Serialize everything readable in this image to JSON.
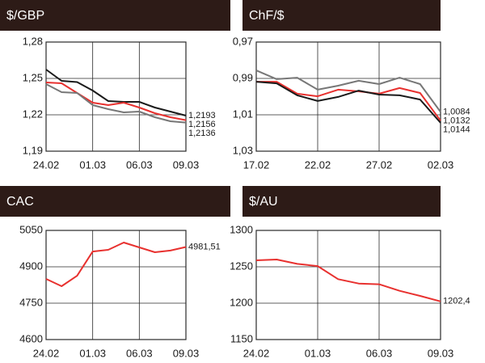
{
  "chart_data": [
    {
      "type": "line",
      "title": "$/GBP",
      "categories": [
        "24.02",
        null,
        null,
        "01.03",
        null,
        null,
        "06.03",
        null,
        null,
        "09.03"
      ],
      "series": [
        {
          "color": "#1a1a1a",
          "values": [
            1.2573,
            1.248,
            1.247,
            1.24,
            1.2313,
            1.2307,
            1.2307,
            1.226,
            1.2227,
            1.2193
          ],
          "value_labels": [
            null,
            null,
            null,
            null,
            null,
            null,
            null,
            null,
            null,
            "1,2193"
          ]
        },
        {
          "color": "#e8312f",
          "values": [
            1.2467,
            1.246,
            1.238,
            1.23,
            1.228,
            1.23,
            1.226,
            1.2213,
            1.218,
            1.2156
          ],
          "value_labels": [
            null,
            null,
            null,
            null,
            null,
            null,
            null,
            null,
            null,
            "1,2156"
          ]
        },
        {
          "color": "#777777",
          "values": [
            1.2453,
            1.2387,
            1.238,
            1.228,
            1.2247,
            1.222,
            1.2227,
            1.218,
            1.2147,
            1.2136
          ],
          "value_labels": [
            null,
            null,
            null,
            null,
            null,
            null,
            null,
            null,
            null,
            "1,2136"
          ]
        }
      ],
      "ylim": [
        1.19,
        1.28
      ],
      "yticks": [
        {
          "value": 1.19,
          "label": "1,19"
        },
        {
          "value": 1.22,
          "label": "1,22"
        },
        {
          "value": 1.25,
          "label": "1,25"
        },
        {
          "value": 1.28,
          "label": "1,28"
        }
      ],
      "grid": true
    },
    {
      "type": "line",
      "title": "ChF/$",
      "categories": [
        "17.02",
        null,
        null,
        "22.02",
        null,
        null,
        "27.02",
        null,
        null,
        "02.03"
      ],
      "series": [
        {
          "color": "#777777",
          "values": [
            0.9856,
            0.9904,
            0.9896,
            0.9962,
            0.994,
            0.9913,
            0.9931,
            0.9896,
            0.9931,
            1.0084
          ],
          "value_labels": [
            null,
            null,
            null,
            null,
            null,
            null,
            null,
            null,
            null,
            "1,0084"
          ]
        },
        {
          "color": "#e8312f",
          "values": [
            0.9918,
            0.9918,
            0.9984,
            0.9998,
            0.9962,
            0.9971,
            0.9984,
            0.9953,
            0.998,
            1.0132
          ],
          "value_labels": [
            null,
            null,
            null,
            null,
            null,
            null,
            null,
            null,
            null,
            "1,0132"
          ]
        },
        {
          "color": "#1a1a1a",
          "values": [
            0.9918,
            0.9927,
            0.9993,
            1.0024,
            1.0002,
            0.9967,
            0.9989,
            0.9993,
            1.0016,
            1.0144
          ],
          "value_labels": [
            null,
            null,
            null,
            null,
            null,
            null,
            null,
            null,
            null,
            "1,0144"
          ]
        }
      ],
      "ylim": [
        1.03,
        0.97
      ],
      "yticks": [
        {
          "value": 1.03,
          "label": "1,03"
        },
        {
          "value": 1.01,
          "label": "1,01"
        },
        {
          "value": 0.99,
          "label": "0,99"
        },
        {
          "value": 0.97,
          "label": "0,97"
        }
      ],
      "grid": true
    },
    {
      "type": "line",
      "title": "CAC",
      "categories": [
        "24.02",
        null,
        null,
        "01.03",
        null,
        null,
        "06.03",
        null,
        null,
        "09.03"
      ],
      "series": [
        {
          "color": "#e8312f",
          "values": [
            4850,
            4820,
            4863,
            4963,
            4970,
            5000,
            4980,
            4960,
            4967,
            4981.51
          ],
          "value_labels": [
            null,
            null,
            null,
            null,
            null,
            null,
            null,
            null,
            null,
            "4981,51"
          ]
        }
      ],
      "ylim": [
        4600,
        5050
      ],
      "yticks": [
        4600,
        4750,
        4900,
        5050
      ],
      "grid": true
    },
    {
      "type": "line",
      "title": "$/AU",
      "categories": [
        "24.02",
        null,
        null,
        "01.03",
        null,
        null,
        "06.03",
        null,
        null,
        "09.03"
      ],
      "series": [
        {
          "color": "#e8312f",
          "values": [
            1258.9,
            1260,
            1254,
            1251,
            1233,
            1227,
            1226,
            1217,
            1210,
            1202.4
          ],
          "value_labels": [
            null,
            null,
            null,
            null,
            null,
            null,
            null,
            null,
            null,
            "1202,4"
          ]
        }
      ],
      "ylim": [
        1150,
        1300
      ],
      "yticks": [
        1150,
        1200,
        1250,
        1300
      ],
      "grid": true
    }
  ]
}
